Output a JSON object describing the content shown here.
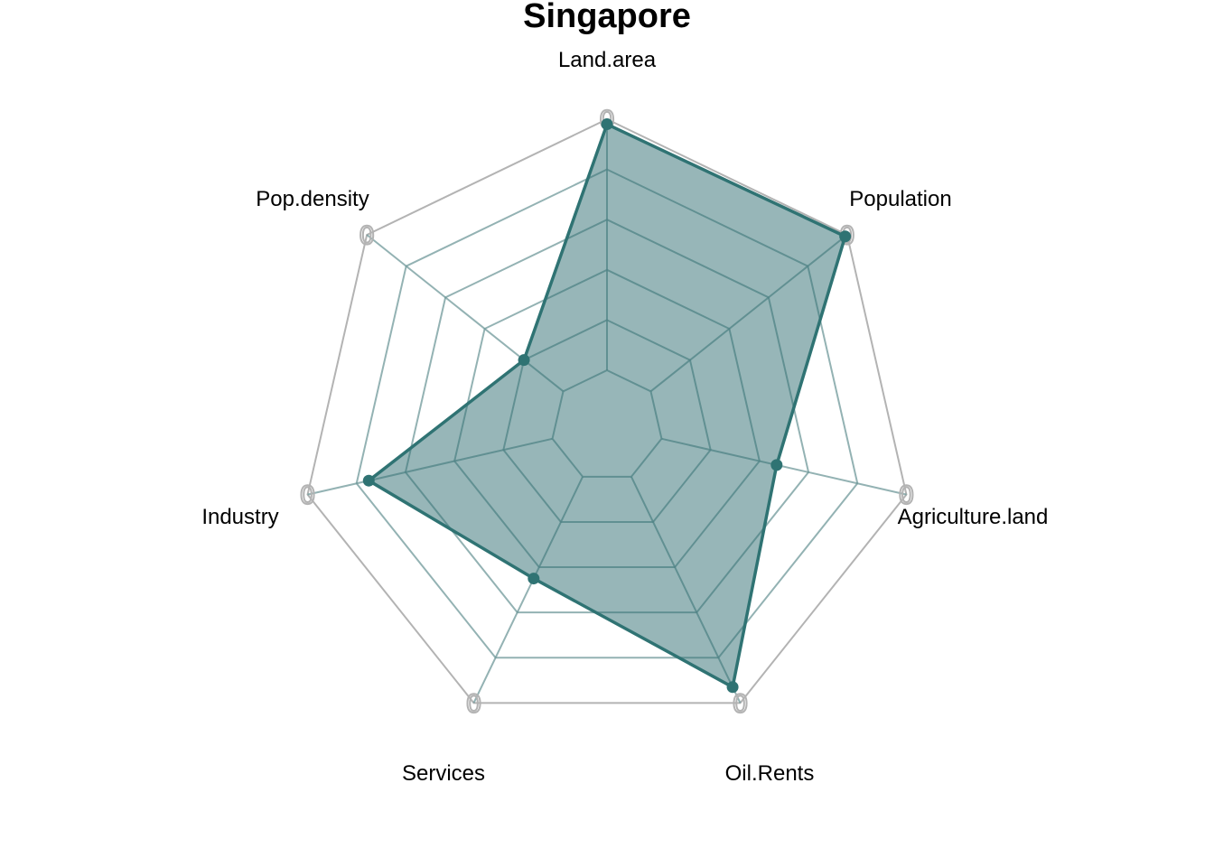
{
  "chart_data": {
    "type": "radar",
    "title": "Singapore",
    "axes": [
      "Land.area",
      "Population",
      "Agriculture.land",
      "Oil.Rents",
      "Services",
      "Industry",
      "Pop.density"
    ],
    "axis_max_labels": [
      "0",
      "0",
      "0",
      "0",
      "0",
      "0",
      "0"
    ],
    "range": [
      0,
      1
    ],
    "grid_levels": 5,
    "series": [
      {
        "values": [
          0.98,
          0.99,
          0.47,
          0.93,
          0.45,
          0.75,
          0.2
        ]
      }
    ],
    "colors": {
      "series_line": "#2f7373",
      "series_fill": "#2f6e72",
      "series_fill_opacity": 0.5,
      "grid": "#b3b3b3",
      "inner_grid": "#6f9899"
    }
  }
}
